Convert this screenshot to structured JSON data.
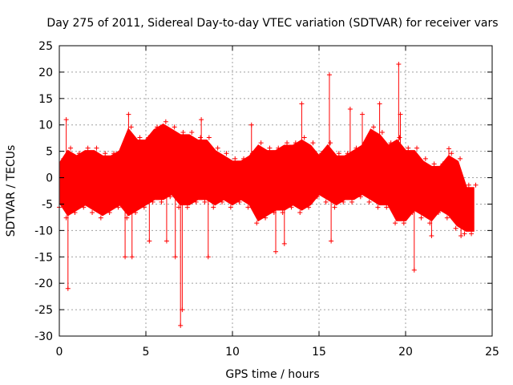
{
  "chart_data": {
    "type": "scatter",
    "title": "Day 275 of 2011, Sidereal Day-to-day VTEC variation (SDTVAR) for receiver vars",
    "xlabel": "GPS time / hours",
    "ylabel": "SDTVAR / TECUs",
    "xlim": [
      0,
      25
    ],
    "ylim": [
      -30,
      25
    ],
    "xticks": [
      0,
      5,
      10,
      15,
      20,
      25
    ],
    "yticks": [
      -30,
      -25,
      -20,
      -15,
      -10,
      -5,
      0,
      5,
      10,
      15,
      20,
      25
    ],
    "grid": true,
    "series_color": "#ff0000",
    "envelope": [
      [
        0.1,
        -5,
        3
      ],
      [
        0.5,
        -7,
        5
      ],
      [
        1,
        -6,
        4
      ],
      [
        1.5,
        -5,
        5
      ],
      [
        2,
        -6,
        5
      ],
      [
        2.5,
        -7,
        4
      ],
      [
        3,
        -6,
        4
      ],
      [
        3.5,
        -5,
        5
      ],
      [
        4,
        -7,
        9
      ],
      [
        4.5,
        -6,
        7
      ],
      [
        5,
        -5,
        7
      ],
      [
        5.5,
        -4,
        9
      ],
      [
        6,
        -4,
        10
      ],
      [
        6.5,
        -3,
        9
      ],
      [
        7,
        -5,
        8
      ],
      [
        7.5,
        -5,
        8
      ],
      [
        8,
        -4,
        7
      ],
      [
        8.5,
        -4,
        7
      ],
      [
        9,
        -5,
        5
      ],
      [
        9.5,
        -4,
        4
      ],
      [
        10,
        -5,
        3
      ],
      [
        10.5,
        -4,
        3
      ],
      [
        11,
        -5,
        4
      ],
      [
        11.5,
        -8,
        6
      ],
      [
        12,
        -7,
        5
      ],
      [
        12.5,
        -6,
        5
      ],
      [
        13,
        -6,
        6
      ],
      [
        13.5,
        -5,
        6
      ],
      [
        14,
        -6,
        7
      ],
      [
        14.5,
        -5,
        6
      ],
      [
        15,
        -3,
        4
      ],
      [
        15.5,
        -4,
        6
      ],
      [
        16,
        -5,
        4
      ],
      [
        16.5,
        -4,
        4
      ],
      [
        17,
        -4,
        5
      ],
      [
        17.5,
        -3,
        6
      ],
      [
        18,
        -4,
        9
      ],
      [
        18.5,
        -5,
        8
      ],
      [
        19,
        -5,
        6
      ],
      [
        19.5,
        -8,
        7
      ],
      [
        20,
        -8,
        5
      ],
      [
        20.5,
        -6,
        5
      ],
      [
        21,
        -7,
        3
      ],
      [
        21.5,
        -8,
        2
      ],
      [
        22,
        -6,
        2
      ],
      [
        22.5,
        -7,
        4
      ],
      [
        23,
        -9,
        3
      ],
      [
        23.5,
        -10,
        -2
      ],
      [
        23.9,
        -10,
        -2
      ]
    ],
    "spikes": [
      [
        0.4,
        11
      ],
      [
        0.5,
        -21
      ],
      [
        3.8,
        -15
      ],
      [
        4,
        12
      ],
      [
        4.2,
        -15
      ],
      [
        5.2,
        -12
      ],
      [
        6.2,
        -12
      ],
      [
        6.7,
        -15
      ],
      [
        7,
        -28
      ],
      [
        7.1,
        -25
      ],
      [
        8.2,
        11
      ],
      [
        8.6,
        -15
      ],
      [
        11.1,
        10
      ],
      [
        12.5,
        -14
      ],
      [
        13.0,
        -12.5
      ],
      [
        14,
        14
      ],
      [
        15.6,
        19.5
      ],
      [
        15.7,
        -12
      ],
      [
        16.8,
        13
      ],
      [
        17.5,
        12
      ],
      [
        18.5,
        14
      ],
      [
        19.6,
        21.5
      ],
      [
        19.7,
        12
      ],
      [
        20.5,
        -17.5
      ],
      [
        21.5,
        -11
      ],
      [
        22.5,
        5.5
      ],
      [
        23.2,
        -11
      ]
    ]
  }
}
